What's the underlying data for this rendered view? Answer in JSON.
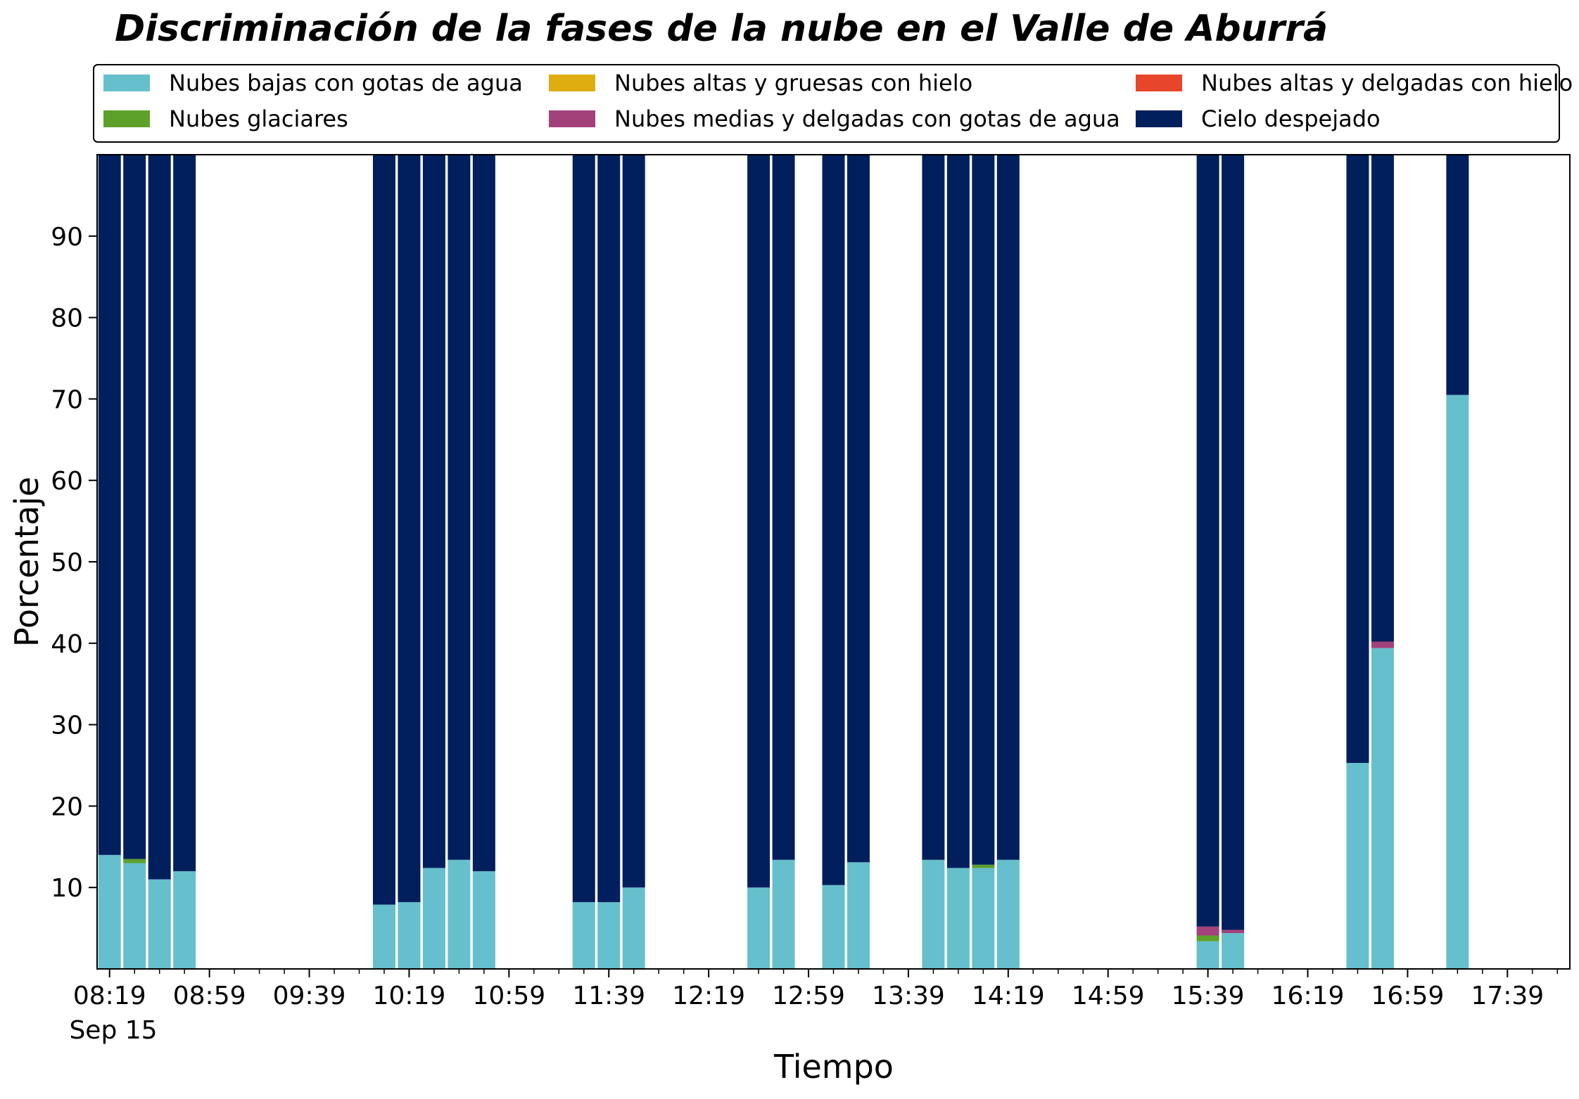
{
  "chart_data": {
    "type": "bar",
    "stacked": true,
    "title": "Discriminación de la fases de la nube en el Valle de Aburrá",
    "xlabel": "Tiempo",
    "ylabel": "Porcentaje",
    "ylim": [
      0,
      100
    ],
    "yticks": [
      10,
      20,
      30,
      40,
      50,
      60,
      70,
      80,
      90
    ],
    "x_range": [
      "08:14",
      "18:04"
    ],
    "xticks": [
      "08:19",
      "08:59",
      "09:39",
      "10:19",
      "10:59",
      "11:39",
      "12:19",
      "12:59",
      "13:39",
      "14:19",
      "14:59",
      "15:39",
      "16:19",
      "16:59",
      "17:39"
    ],
    "x_sublabel": "Sep 15",
    "grid": false,
    "legend_position": "top",
    "legend_columns": 3,
    "categories": [
      "08:19",
      "08:29",
      "08:39",
      "08:49",
      "10:09",
      "10:19",
      "10:29",
      "10:39",
      "10:49",
      "11:29",
      "11:39",
      "11:49",
      "12:39",
      "12:49",
      "13:09",
      "13:19",
      "13:49",
      "13:59",
      "14:09",
      "14:19",
      "15:39",
      "15:49",
      "16:39",
      "16:49",
      "17:19"
    ],
    "series": [
      {
        "name": "Nubes bajas con gotas de agua",
        "color": "#66bfcc",
        "values": [
          14,
          13,
          11,
          12,
          7.9,
          8.2,
          12.4,
          13.4,
          12,
          8.2,
          8.2,
          10,
          10,
          13.4,
          10.3,
          13.1,
          13.4,
          12.4,
          12.4,
          13.4,
          3.4,
          4.4,
          25.3,
          39.4,
          70.5
        ]
      },
      {
        "name": "Nubes glaciares",
        "color": "#5da12a",
        "values": [
          0,
          0.5,
          0,
          0,
          0,
          0,
          0,
          0,
          0,
          0,
          0,
          0,
          0,
          0,
          0,
          0,
          0,
          0,
          0.4,
          0,
          0.7,
          0,
          0,
          0,
          0
        ]
      },
      {
        "name": "Nubes altas y gruesas con hielo",
        "color": "#e0ad10",
        "values": [
          0,
          0,
          0,
          0,
          0,
          0,
          0,
          0,
          0,
          0,
          0,
          0,
          0,
          0,
          0,
          0,
          0,
          0,
          0,
          0,
          0,
          0,
          0,
          0,
          0
        ]
      },
      {
        "name": "Nubes medias y delgadas con gotas de agua",
        "color": "#a3427a",
        "values": [
          0,
          0,
          0,
          0,
          0,
          0,
          0,
          0,
          0,
          0,
          0,
          0,
          0,
          0,
          0,
          0,
          0,
          0,
          0,
          0,
          1.1,
          0.4,
          0,
          0.8,
          0
        ]
      },
      {
        "name": "Nubes altas y delgadas con hielo",
        "color": "#e8462a",
        "values": [
          0,
          0,
          0,
          0,
          0,
          0,
          0,
          0,
          0,
          0,
          0,
          0,
          0,
          0,
          0,
          0,
          0,
          0,
          0,
          0,
          0,
          0,
          0,
          0,
          0
        ]
      },
      {
        "name": "Cielo despejado",
        "color": "#001f5c",
        "values": [
          86,
          86.5,
          89,
          88,
          92.1,
          91.8,
          87.6,
          86.6,
          88,
          91.8,
          91.8,
          90,
          90,
          86.6,
          89.7,
          86.9,
          86.6,
          87.6,
          87.2,
          86.6,
          94.8,
          95.2,
          74.7,
          59.8,
          29.5
        ]
      }
    ]
  }
}
